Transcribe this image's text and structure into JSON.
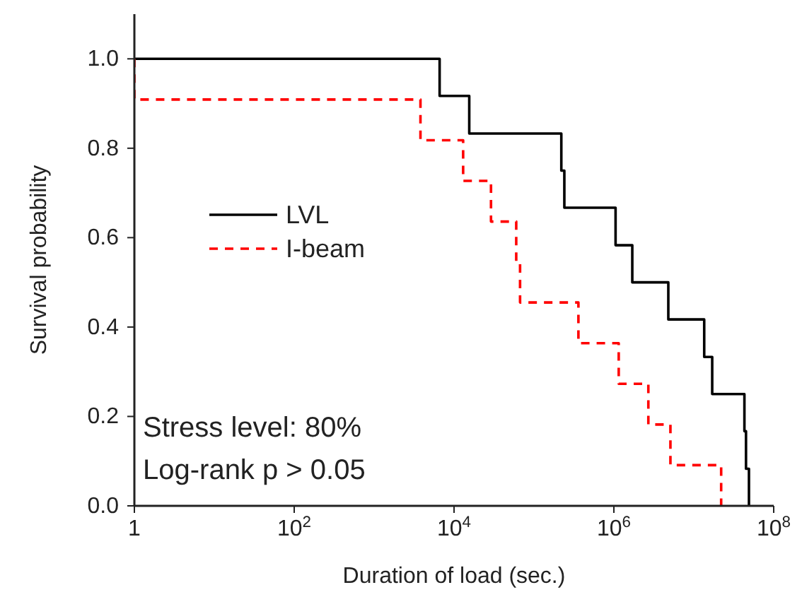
{
  "chart_data": {
    "type": "step",
    "xlabel": "Duration of load (sec.)",
    "ylabel": "Survival probability",
    "log": "x",
    "legend": "left",
    "xlim": [
      1,
      100000000
    ],
    "xticks": [
      1,
      {
        "value": 100,
        "label": "10$^{2}$"
      },
      {
        "value": 10000,
        "label": "10$^{4}$"
      },
      {
        "value": 1000000,
        "label": "10$^{6}$"
      },
      {
        "value": 100000000,
        "label": "10$^{8}$"
      }
    ],
    "ylim": [
      0,
      1.1
    ],
    "yticks": [
      {
        "value": 0,
        "label": "0.0"
      },
      {
        "value": 0.2,
        "label": "0.2"
      },
      {
        "value": 0.4,
        "label": "0.4"
      },
      {
        "value": 0.6,
        "label": "0.6"
      },
      {
        "value": 0.8,
        "label": "0.8"
      },
      {
        "value": 1,
        "label": "1.0"
      }
    ],
    "annotations": [
      "Stress level: 80%",
      "Log-rank p > 0.05"
    ],
    "series": [
      {
        "name": "LVL",
        "color": "#000000",
        "line_style": "solid",
        "x": [
          1,
          6600,
          15500,
          220000,
          240000,
          1050000,
          1700000,
          4800000,
          13500000,
          17000000,
          43000000,
          45000000,
          49000000
        ],
        "values": [
          1,
          0.917,
          0.833,
          0.75,
          0.667,
          0.583,
          0.5,
          0.417,
          0.333,
          0.25,
          0.167,
          0.083,
          0
        ]
      },
      {
        "name": "I-beam",
        "color": "#ff0000",
        "line_style": "dashed",
        "x": [
          1,
          1,
          3800,
          13000,
          29000,
          60000,
          67000,
          360000,
          1150000,
          2700000,
          5100000,
          22000000
        ],
        "values": [
          1,
          0.909,
          0.818,
          0.727,
          0.636,
          0.545,
          0.455,
          0.364,
          0.273,
          0.182,
          0.091,
          0
        ]
      }
    ]
  }
}
